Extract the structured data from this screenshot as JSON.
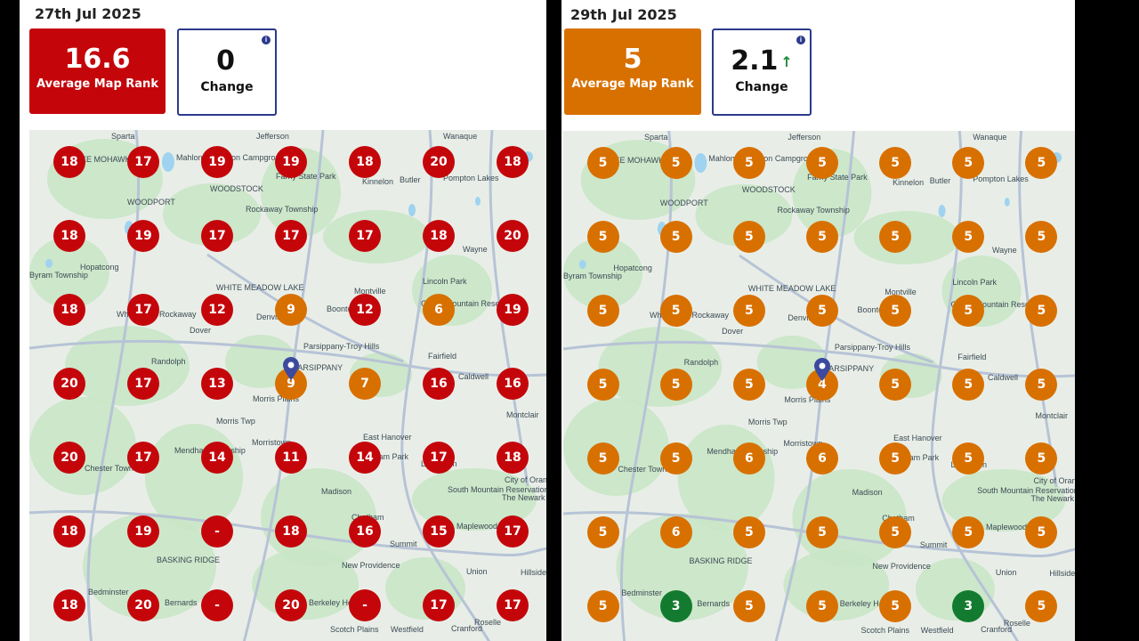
{
  "colors": {
    "red": "#c4060b",
    "orange": "#d87000",
    "green": "#137b2f",
    "card_border": "#2b3a8c"
  },
  "panels": [
    {
      "date": "27th Jul 2025",
      "avg_rank": "16.6",
      "avg_label": "Average Map Rank",
      "avg_color": "#c4060b",
      "change": "0",
      "change_label": "Change",
      "change_arrow": "",
      "grid": [
        [
          "18",
          "17",
          "19",
          "19",
          "18",
          "20",
          "18"
        ],
        [
          "18",
          "19",
          "17",
          "17",
          "17",
          "18",
          "20"
        ],
        [
          "18",
          "17",
          "12",
          "9",
          "12",
          "6",
          "19"
        ],
        [
          "20",
          "17",
          "13",
          "9",
          "7",
          "16",
          "16"
        ],
        [
          "20",
          "17",
          "14",
          "11",
          "14",
          "17",
          "18"
        ],
        [
          "18",
          "19",
          "-",
          "18",
          "16",
          "15",
          "17"
        ],
        [
          "18",
          "20",
          "-",
          "20",
          "-",
          "17",
          "17"
        ]
      ],
      "grid_colors": [
        [
          "red",
          "red",
          "red",
          "red",
          "red",
          "red",
          "red"
        ],
        [
          "red",
          "red",
          "red",
          "red",
          "red",
          "red",
          "red"
        ],
        [
          "red",
          "red",
          "red",
          "orange",
          "red",
          "orange",
          "red"
        ],
        [
          "red",
          "red",
          "red",
          "orange",
          "orange",
          "red",
          "red"
        ],
        [
          "red",
          "red",
          "red",
          "red",
          "red",
          "red",
          "red"
        ],
        [
          "red",
          "red",
          "red",
          "red",
          "red",
          "red",
          "red"
        ],
        [
          "red",
          "red",
          "red",
          "red",
          "red",
          "red",
          "red"
        ]
      ]
    },
    {
      "date": "29th Jul 2025",
      "avg_rank": "5",
      "avg_label": "Average Map Rank",
      "avg_color": "#d87000",
      "change": "2.1",
      "change_label": "Change",
      "change_arrow": "↑",
      "grid": [
        [
          "5",
          "5",
          "5",
          "5",
          "5",
          "5",
          "5"
        ],
        [
          "5",
          "5",
          "5",
          "5",
          "5",
          "5",
          "5"
        ],
        [
          "5",
          "5",
          "5",
          "5",
          "5",
          "5",
          "5"
        ],
        [
          "5",
          "5",
          "5",
          "4",
          "5",
          "5",
          "5"
        ],
        [
          "5",
          "5",
          "6",
          "6",
          "5",
          "5",
          "5"
        ],
        [
          "5",
          "6",
          "5",
          "5",
          "5",
          "5",
          "5"
        ],
        [
          "5",
          "3",
          "5",
          "5",
          "5",
          "3",
          "5"
        ]
      ],
      "grid_colors": [
        [
          "orange",
          "orange",
          "orange",
          "orange",
          "orange",
          "orange",
          "orange"
        ],
        [
          "orange",
          "orange",
          "orange",
          "orange",
          "orange",
          "orange",
          "orange"
        ],
        [
          "orange",
          "orange",
          "orange",
          "orange",
          "orange",
          "orange",
          "orange"
        ],
        [
          "orange",
          "orange",
          "orange",
          "orange",
          "orange",
          "orange",
          "orange"
        ],
        [
          "orange",
          "orange",
          "orange",
          "orange",
          "orange",
          "orange",
          "orange"
        ],
        [
          "orange",
          "orange",
          "orange",
          "orange",
          "orange",
          "orange",
          "orange"
        ],
        [
          "orange",
          "green",
          "orange",
          "orange",
          "orange",
          "green",
          "orange"
        ]
      ]
    }
  ],
  "map_places": [
    {
      "name": "Sparta"
    },
    {
      "name": "Jefferson"
    },
    {
      "name": "Wanaque"
    },
    {
      "name": "LAKE MOHAWK"
    },
    {
      "name": "Mahlon Dickerson Campground"
    },
    {
      "name": "Farny State Park"
    },
    {
      "name": "Kinnelon"
    },
    {
      "name": "Butler"
    },
    {
      "name": "Pompton Lakes"
    },
    {
      "name": "WOODSTOCK"
    },
    {
      "name": "WOODPORT"
    },
    {
      "name": "Rockaway Township"
    },
    {
      "name": "Wayne"
    },
    {
      "name": "Hopatcong"
    },
    {
      "name": "Lincoln Park"
    },
    {
      "name": "Byram Township"
    },
    {
      "name": "WHITE MEADOW LAKE"
    },
    {
      "name": "Montville"
    },
    {
      "name": "Wharton"
    },
    {
      "name": "Rockaway"
    },
    {
      "name": "Boonton"
    },
    {
      "name": "Dover"
    },
    {
      "name": "Denville"
    },
    {
      "name": "Parsippany-Troy Hills"
    },
    {
      "name": "Fairfield"
    },
    {
      "name": "Randolph"
    },
    {
      "name": "PARSIPPANY"
    },
    {
      "name": "Caldwell"
    },
    {
      "name": "Morris Plains"
    },
    {
      "name": "Morris Twp"
    },
    {
      "name": "Montclair"
    },
    {
      "name": "East Hanover"
    },
    {
      "name": "Mendham Township"
    },
    {
      "name": "Chester Township"
    },
    {
      "name": "Madison"
    },
    {
      "name": "South Mountain Reservation"
    },
    {
      "name": "City of Orange"
    },
    {
      "name": "The Newark Museum of Art"
    },
    {
      "name": "Chatham"
    },
    {
      "name": "Maplewood"
    },
    {
      "name": "Summit"
    },
    {
      "name": "BASKING RIDGE"
    },
    {
      "name": "New Providence"
    },
    {
      "name": "Union"
    },
    {
      "name": "Hillside"
    },
    {
      "name": "Bedminster"
    },
    {
      "name": "Bernards"
    },
    {
      "name": "Berkeley Heights"
    },
    {
      "name": "Scotch Plains"
    },
    {
      "name": "Westfield"
    },
    {
      "name": "Cranford"
    },
    {
      "name": "Roselle"
    },
    {
      "name": "Garret Mountain Reservation"
    },
    {
      "name": "Florham Park"
    },
    {
      "name": "Livingston"
    },
    {
      "name": "Morristown"
    }
  ]
}
